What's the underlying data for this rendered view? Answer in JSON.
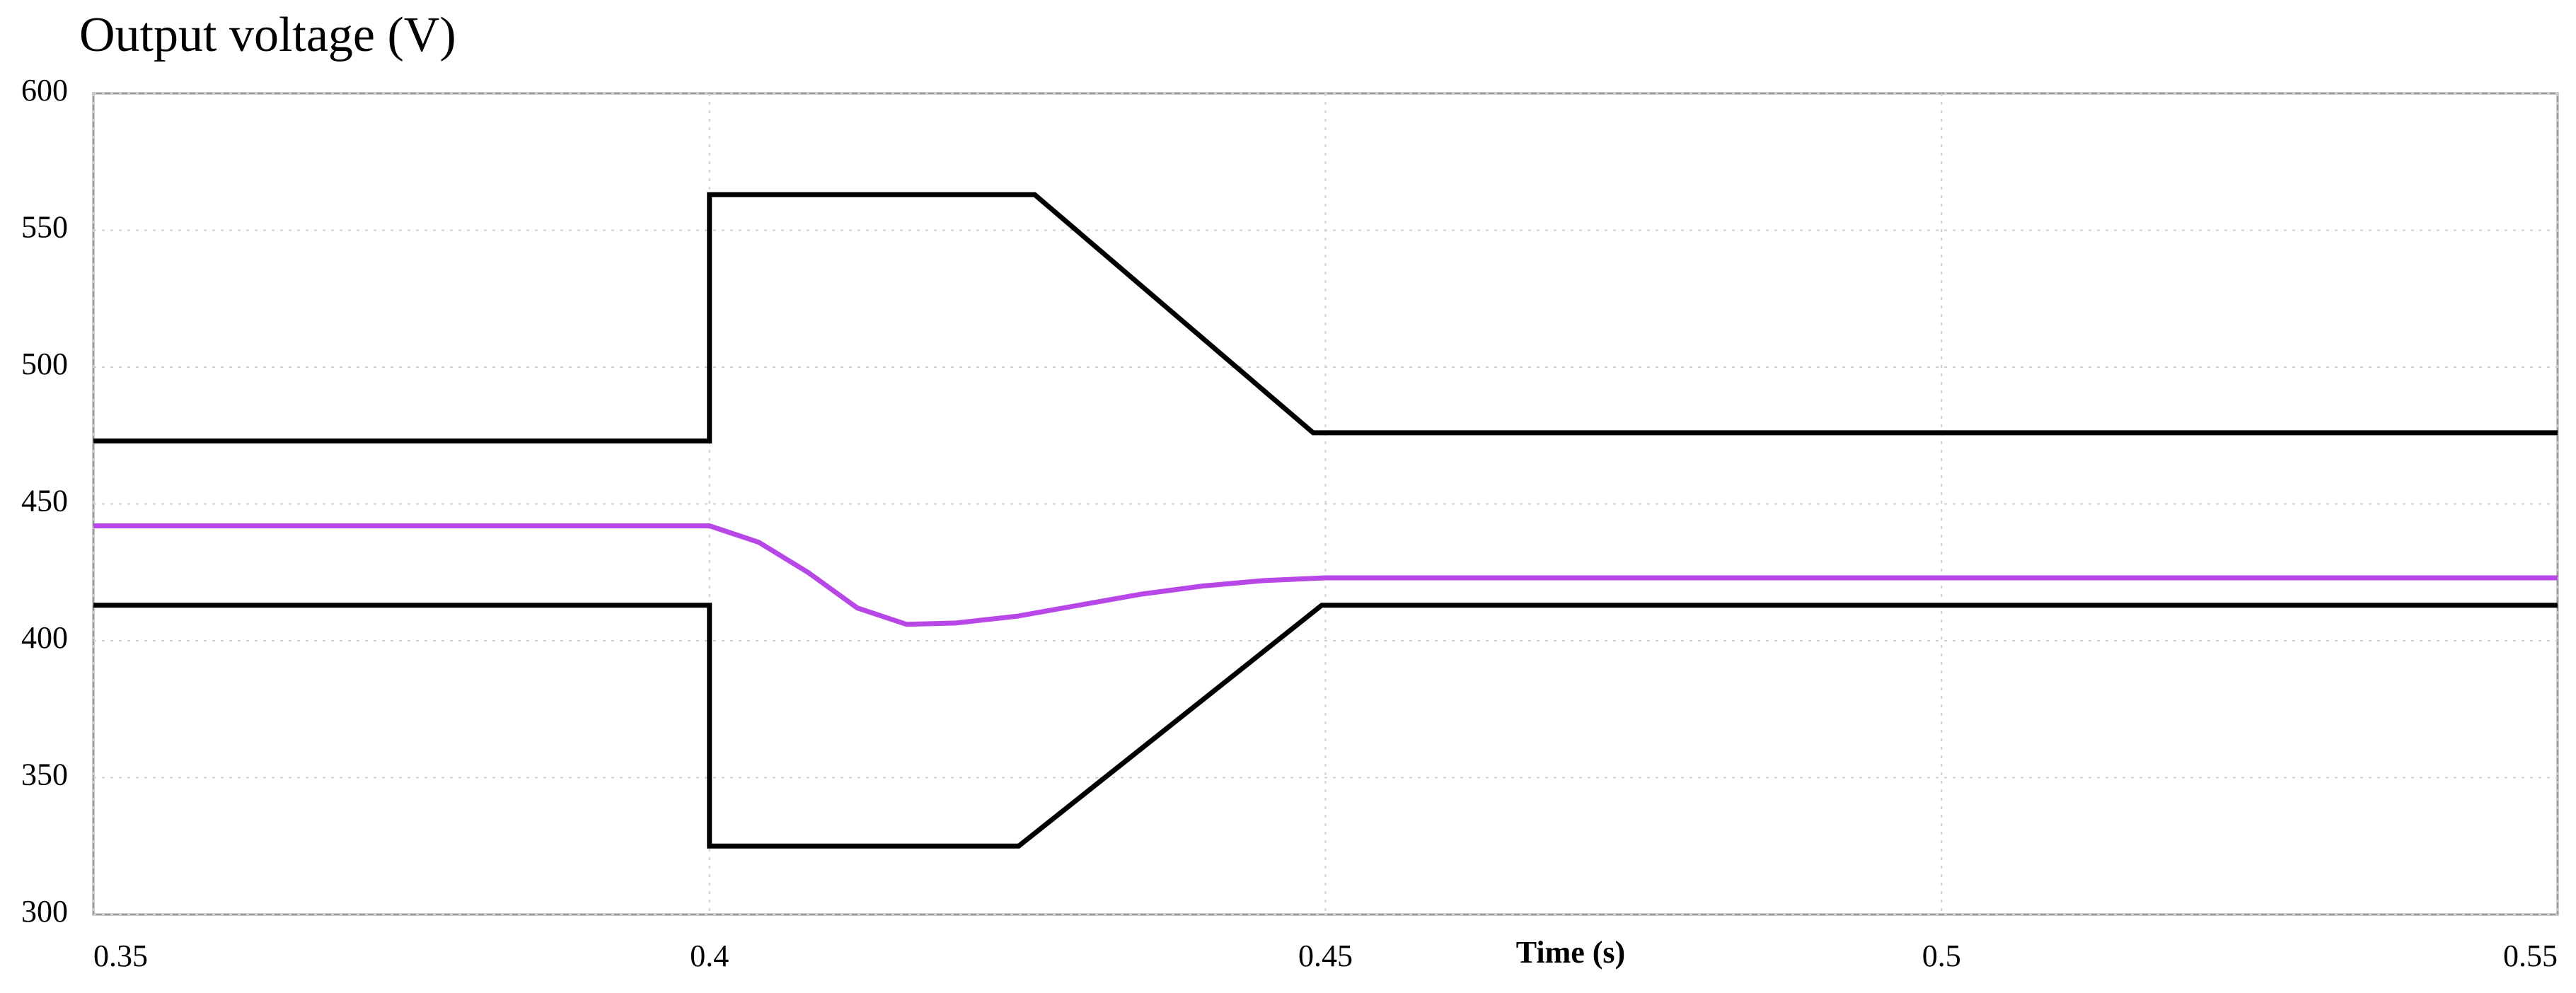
{
  "chart_data": {
    "type": "line",
    "title": "Output voltage (V)",
    "title_color": "#bf55d6",
    "x_label": "Time (s)",
    "xlim": [
      0.35,
      0.55
    ],
    "xticks": [
      0.35,
      0.4,
      0.45,
      0.5,
      0.55
    ],
    "ylim": [
      300,
      600
    ],
    "yticks": [
      300,
      350,
      400,
      450,
      500,
      550,
      600
    ],
    "grid": true,
    "series": [
      {
        "color": "#000000",
        "x": [
          0.35,
          0.4,
          0.4,
          0.4264,
          0.449,
          0.55
        ],
        "values": [
          473,
          473,
          563,
          563,
          476,
          476
        ]
      },
      {
        "color": "#000000",
        "x": [
          0.35,
          0.4,
          0.4,
          0.4251,
          0.4497,
          0.55
        ],
        "values": [
          413,
          413,
          325,
          325,
          413,
          413
        ]
      },
      {
        "color": "#b847e8",
        "x": [
          0.35,
          0.4,
          0.404,
          0.408,
          0.412,
          0.416,
          0.42,
          0.425,
          0.43,
          0.435,
          0.44,
          0.445,
          0.45,
          0.55
        ],
        "values": [
          442,
          442,
          436,
          425,
          412,
          406,
          406.5,
          409,
          413,
          417,
          420,
          422,
          423,
          423
        ]
      }
    ]
  }
}
